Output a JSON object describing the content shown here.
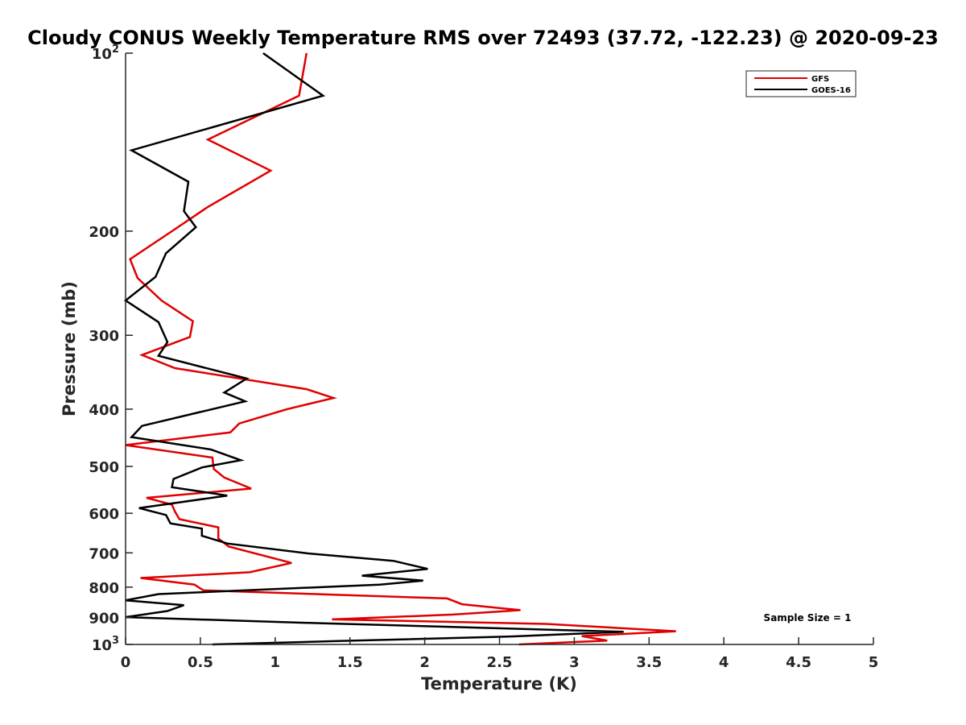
{
  "chart_data": {
    "type": "line",
    "title": "Cloudy CONUS Weekly Temperature RMS over 72493 (37.72, -122.23) @ 2020-09-23",
    "xlabel": "Temperature (K)",
    "ylabel": "Pressure (mb)",
    "xlim": [
      0,
      5
    ],
    "ylim": [
      100,
      1000
    ],
    "y_scale": "log",
    "y_reversed": true,
    "grid": false,
    "legend_position": "top-right",
    "x_ticks": [
      0,
      0.5,
      1,
      1.5,
      2,
      2.5,
      3,
      3.5,
      4,
      4.5,
      5
    ],
    "x_tick_labels": [
      "0",
      "0.5",
      "1",
      "1.5",
      "2",
      "2.5",
      "3",
      "3.5",
      "4",
      "4.5",
      "5"
    ],
    "y_ticks": [
      100,
      200,
      300,
      400,
      500,
      600,
      700,
      800,
      900,
      1000
    ],
    "y_tick_labels": [
      {
        "base": "10",
        "exp": "2"
      },
      {
        "base": "200"
      },
      {
        "base": "300"
      },
      {
        "base": "400"
      },
      {
        "base": "500"
      },
      {
        "base": "600"
      },
      {
        "base": "700"
      },
      {
        "base": "800"
      },
      {
        "base": "900"
      },
      {
        "base": "10",
        "exp": "3"
      }
    ],
    "series": [
      {
        "name": "GFS",
        "color": "#e00000",
        "points": [
          [
            1.21,
            100
          ],
          [
            1.16,
            118
          ],
          [
            0.55,
            140
          ],
          [
            0.97,
            158
          ],
          [
            0.55,
            182
          ],
          [
            0.31,
            200
          ],
          [
            0.03,
            223
          ],
          [
            0.08,
            240
          ],
          [
            0.24,
            262
          ],
          [
            0.45,
            284
          ],
          [
            0.43,
            302
          ],
          [
            0.11,
            324
          ],
          [
            0.33,
            341
          ],
          [
            1.21,
            370
          ],
          [
            1.39,
            383
          ],
          [
            1.08,
            400
          ],
          [
            0.76,
            423
          ],
          [
            0.7,
            438
          ],
          [
            0.0,
            460
          ],
          [
            0.58,
            483
          ],
          [
            0.59,
            505
          ],
          [
            0.66,
            522
          ],
          [
            0.84,
            545
          ],
          [
            0.14,
            565
          ],
          [
            0.31,
            580
          ],
          [
            0.33,
            596
          ],
          [
            0.36,
            614
          ],
          [
            0.62,
            634
          ],
          [
            0.62,
            662
          ],
          [
            0.69,
            683
          ],
          [
            1.11,
            728
          ],
          [
            0.83,
            755
          ],
          [
            0.1,
            772
          ],
          [
            0.46,
            792
          ],
          [
            0.52,
            810
          ],
          [
            2.15,
            836
          ],
          [
            2.25,
            855
          ],
          [
            2.64,
            875
          ],
          [
            2.19,
            890
          ],
          [
            1.38,
            907
          ],
          [
            2.81,
            923
          ],
          [
            3.68,
            950
          ],
          [
            3.05,
            968
          ],
          [
            3.22,
            985
          ],
          [
            2.63,
            1000
          ]
        ]
      },
      {
        "name": "GOES-16",
        "color": "#000000",
        "points": [
          [
            0.92,
            100
          ],
          [
            1.32,
            118
          ],
          [
            0.04,
            146
          ],
          [
            0.42,
            165
          ],
          [
            0.39,
            185
          ],
          [
            0.47,
            197
          ],
          [
            0.27,
            218
          ],
          [
            0.2,
            239
          ],
          [
            0.0,
            262
          ],
          [
            0.22,
            285
          ],
          [
            0.28,
            308
          ],
          [
            0.22,
            325
          ],
          [
            0.81,
            355
          ],
          [
            0.66,
            375
          ],
          [
            0.8,
            388
          ],
          [
            0.49,
            405
          ],
          [
            0.11,
            427
          ],
          [
            0.04,
            446
          ],
          [
            0.57,
            468
          ],
          [
            0.77,
            488
          ],
          [
            0.51,
            502
          ],
          [
            0.32,
            525
          ],
          [
            0.31,
            542
          ],
          [
            0.68,
            560
          ],
          [
            0.09,
            588
          ],
          [
            0.27,
            604
          ],
          [
            0.3,
            624
          ],
          [
            0.51,
            637
          ],
          [
            0.51,
            655
          ],
          [
            0.68,
            675
          ],
          [
            1.21,
            701
          ],
          [
            1.79,
            722
          ],
          [
            2.02,
            745
          ],
          [
            1.58,
            765
          ],
          [
            1.99,
            780
          ],
          [
            1.7,
            792
          ],
          [
            0.22,
            822
          ],
          [
            0.0,
            842
          ],
          [
            0.39,
            858
          ],
          [
            0.28,
            878
          ],
          [
            0.0,
            899
          ],
          [
            1.25,
            920
          ],
          [
            3.33,
            952
          ],
          [
            2.55,
            970
          ],
          [
            1.42,
            987
          ],
          [
            0.58,
            1000
          ]
        ]
      }
    ],
    "annotations": [
      {
        "text": "Sample Size = 1",
        "position": "bottom-right"
      }
    ]
  }
}
